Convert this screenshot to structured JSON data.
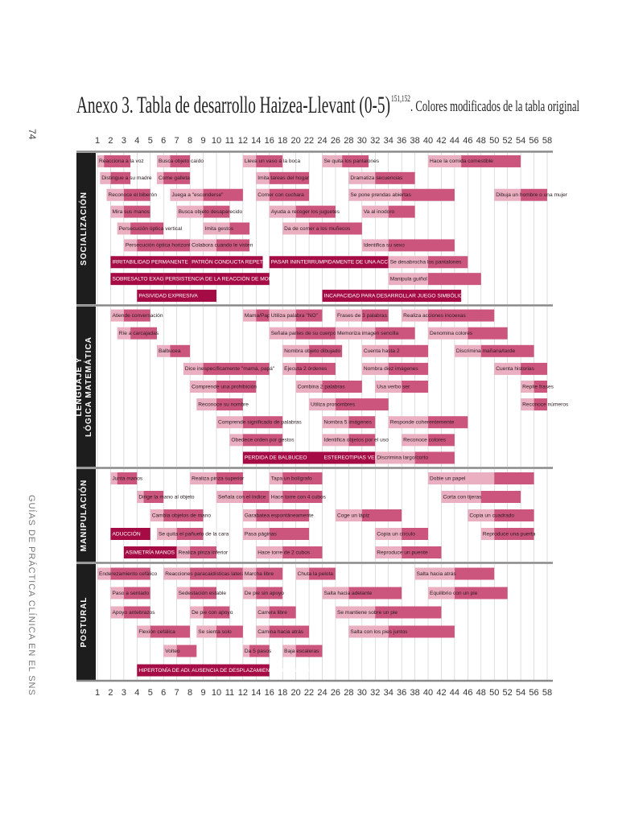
{
  "title": "Anexo 3. Tabla de desarrollo Haizea-Llevant (0-5)",
  "title_sup": "151,152",
  "title_rest": ". Colores modificados de la tabla original",
  "page_number": "74",
  "side_text": "GUÍAS DE PRÁCTICA CLÍNICA EN EL SNS",
  "xticks": [
    1,
    2,
    3,
    4,
    5,
    6,
    7,
    8,
    9,
    10,
    11,
    12,
    14,
    16,
    18,
    20,
    22,
    24,
    26,
    28,
    30,
    32,
    34,
    36,
    38,
    40,
    42,
    44,
    46,
    48,
    50,
    52,
    54,
    56,
    58
  ],
  "sections": [
    {
      "name": [
        "SOCIALIZACIÓN"
      ],
      "rows": [
        [
          {
            "label": "Reacciona a la voz",
            "range": [
              1,
              1.5,
              3.5
            ]
          },
          {
            "label": "Busca objeto caído",
            "range": [
              5.5,
              6.5,
              8
            ]
          },
          {
            "label": "Lleva un vaso a la boca",
            "range": [
              12,
              14,
              18
            ]
          },
          {
            "label": "Se quita los pantalones",
            "range": [
              24,
              27,
              31
            ]
          },
          {
            "label": "Hace la comida comestible",
            "range": [
              40,
              45,
              54
            ]
          }
        ],
        [
          {
            "label": "Distingue a su madre",
            "range": [
              1.2,
              2,
              3.5
            ]
          },
          {
            "label": "Come galleta",
            "range": [
              5.5,
              6,
              8
            ]
          },
          {
            "label": "Imita tareas del hogar",
            "range": [
              14,
              16,
              22
            ]
          },
          {
            "label": "Dramatiza secuencias",
            "range": [
              28,
              32,
              38
            ]
          }
        ],
        [
          {
            "label": "Reconoce el biberón",
            "range": [
              1.7,
              3,
              5
            ]
          },
          {
            "label": "Juega a \"esconderse\"",
            "range": [
              6.5,
              9,
              12
            ]
          },
          {
            "label": "Comer con cuchara",
            "range": [
              14,
              16,
              22
            ]
          },
          {
            "label": "Se pone prendas abiertas",
            "range": [
              28,
              36,
              44
            ]
          },
          {
            "label": "Dibuja un hombre o una mujer",
            "range": [
              50,
              54,
              58
            ]
          }
        ],
        [
          {
            "label": "Mira sus manos",
            "range": [
              2,
              3,
              5
            ]
          },
          {
            "label": "Busca objeto desaparecido",
            "range": [
              7,
              9,
              11
            ]
          },
          {
            "label": "Ayuda a recoger los juguetes",
            "range": [
              16,
              20,
              26
            ]
          },
          {
            "label": "Va al inodoro",
            "range": [
              30,
              34,
              38
            ]
          }
        ],
        [
          {
            "label": "Persecución óptica vertical",
            "range": [
              2.5,
              3.5,
              6
            ]
          },
          {
            "label": "Imita gestos",
            "range": [
              9,
              11,
              13
            ]
          },
          {
            "label": "Da de comer a los muñecos",
            "range": [
              18,
              22,
              30
            ]
          }
        ],
        [
          {
            "label": "Persecución óptica horizontal",
            "range": [
              3,
              4,
              8
            ]
          },
          {
            "label": "Colabora cuando le visten",
            "range": [
              8,
              10,
              13
            ]
          },
          {
            "label": "Identifica su sexo",
            "range": [
              30,
              34,
              44
            ]
          }
        ],
        [
          {
            "label": "IRRITABILIDAD PERMANENTE",
            "range": [
              2,
              8
            ]
          },
          {
            "label": "PATRÓN CONDUCTA REPETITIVO",
            "range": [
              8,
              15
            ]
          },
          {
            "label": "PASAR ININTERRUMPIDAMENTE DE UNA ACCIÓN A OTRA",
            "range": [
              16,
              34
            ]
          },
          {
            "label": "Se desabrocha los pantalones",
            "range": [
              34,
              40,
              46
            ]
          }
        ],
        [
          {
            "label": "SOBRESALTO EXAGERADO",
            "range": [
              2,
              6
            ]
          },
          {
            "label": "PERSISTENCIA DE LA REACCIÓN DE MORO",
            "range": [
              6,
              16
            ]
          },
          {
            "label": "Manipula guiñol",
            "range": [
              34,
              40,
              48
            ]
          }
        ],
        [
          {
            "label": "PASIVIDAD EXPRESIVA",
            "range": [
              4,
              10
            ]
          },
          {
            "label": "INCAPACIDAD PARA DESARROLLAR JUEGO SIMBÓLICO",
            "range": [
              24,
              45
            ]
          }
        ]
      ]
    },
    {
      "name": [
        "LENGUAJE Y",
        "LÓGICA MATEMÁTICA"
      ],
      "rows": [
        [
          {
            "label": "Atiende conversación",
            "range": [
              2,
              3,
              5
            ]
          },
          {
            "label": "Mama/Papá",
            "range": [
              12,
              14,
              16
            ]
          },
          {
            "label": "Utiliza palabra \"NO\"",
            "range": [
              16,
              20,
              24
            ]
          },
          {
            "label": "Frases de 3 palabras",
            "range": [
              26,
              30,
              34
            ]
          },
          {
            "label": "Realiza acciones incoexas",
            "range": [
              36,
              40,
              50
            ]
          }
        ],
        [
          {
            "label": "Ríe a carcajadas",
            "range": [
              2.5,
              3.5,
              5.5
            ]
          },
          {
            "label": "Señala partes de su cuerpo",
            "range": [
              16,
              20,
              26
            ]
          },
          {
            "label": "Memoriza imagen sencilla",
            "range": [
              26,
              32,
              38
            ]
          },
          {
            "label": "Denomina colores",
            "range": [
              40,
              46,
              52
            ]
          }
        ],
        [
          {
            "label": "Balbucea",
            "range": [
              5.5,
              6.5,
              8
            ]
          },
          {
            "label": "Nombra objeto dibujado",
            "range": [
              18,
              22,
              27
            ]
          },
          {
            "label": "Cuenta hasta 2",
            "range": [
              30,
              34,
              40
            ]
          },
          {
            "label": "Discrimina mañana/tarde",
            "range": [
              44,
              48,
              56
            ]
          }
        ],
        [
          {
            "label": "Dice inespecíficamente \"mamá, papá\"",
            "range": [
              7.5,
              9,
              16
            ]
          },
          {
            "label": "Ejecuta 2 órdenes",
            "range": [
              18,
              20,
              26
            ]
          },
          {
            "label": "Nombra diez imágenes",
            "range": [
              30,
              34,
              40
            ]
          },
          {
            "label": "Cuenta historias",
            "range": [
              50,
              54,
              58
            ]
          }
        ],
        [
          {
            "label": "Comprende una prohibición",
            "range": [
              8,
              10,
              14
            ]
          },
          {
            "label": "Combina 2 palabras",
            "range": [
              20,
              24,
              30
            ]
          },
          {
            "label": "Usa verbo ser",
            "range": [
              32,
              36,
              40
            ]
          },
          {
            "label": "Repite frases",
            "range": [
              54,
              56,
              58
            ]
          }
        ],
        [
          {
            "label": "Reconoce su nombre",
            "range": [
              8.5,
              10,
              12
            ]
          },
          {
            "label": "Utiliza pronombres",
            "range": [
              22,
              26,
              34
            ]
          },
          {
            "label": "Reconoce números",
            "range": [
              54,
              56,
              58
            ]
          }
        ],
        [
          {
            "label": "Comprende significado de palabras",
            "range": [
              10,
              12,
              18
            ]
          },
          {
            "label": "Nombra 5 imágenes",
            "range": [
              24,
              28,
              32
            ]
          },
          {
            "label": "Responde coherentemente",
            "range": [
              34,
              40,
              46
            ]
          }
        ],
        [
          {
            "label": "Obedece orden por gestos",
            "range": [
              11,
              12,
              18
            ]
          },
          {
            "label": "Identifica objetos por el uso",
            "range": [
              24,
              28,
              32
            ]
          },
          {
            "label": "Reconoce colores",
            "range": [
              36,
              40,
              44
            ]
          }
        ],
        [
          {
            "label": "PERDIDA DE BALBUCEO",
            "range": [
              12,
              24
            ]
          },
          {
            "label": "ESTEREOTIPIAS VERB.",
            "range": [
              24,
              32
            ]
          },
          {
            "label": "Discrimina largo/corto",
            "range": [
              32,
              38,
              44
            ]
          }
        ]
      ]
    },
    {
      "name": [
        "MANIPULACIÓN"
      ],
      "rows": [
        [
          {
            "label": "Junta manos",
            "range": [
              2,
              2.5,
              4
            ]
          },
          {
            "label": "Realiza pinza superior",
            "range": [
              8,
              10,
              12
            ]
          },
          {
            "label": "Tapa un bolígrafo",
            "range": [
              16,
              18,
              24
            ]
          },
          {
            "label": "Doble un papel",
            "range": [
              40,
              50,
              56
            ]
          }
        ],
        [
          {
            "label": "Dirige la mano al objeto",
            "range": [
              4,
              4.5,
              6
            ]
          },
          {
            "label": "Señala con el índice",
            "range": [
              10,
              12,
              16
            ]
          },
          {
            "label": "Hace torre con 4 cubos",
            "range": [
              16,
              18,
              24
            ]
          },
          {
            "label": "Corta con tijeras",
            "range": [
              42,
              48,
              54
            ]
          }
        ],
        [
          {
            "label": "Cambia objetos de mano",
            "range": [
              5,
              6,
              9
            ]
          },
          {
            "label": "Garabatea espontáneamente",
            "range": [
              12,
              14,
              22
            ]
          },
          {
            "label": "Coge un lápiz",
            "range": [
              26,
              30,
              36
            ]
          },
          {
            "label": "Copia un cuadrado",
            "range": [
              46,
              50,
              56
            ]
          }
        ],
        [
          {
            "label": "ADUCCIÓN",
            "range": [
              2,
              5
            ]
          },
          {
            "label": "Se quita el pañuelo de la cara",
            "range": [
              5.5,
              7,
              9
            ]
          },
          {
            "label": "Pasa páginas",
            "range": [
              12,
              16,
              22
            ]
          },
          {
            "label": "Copia un círculo",
            "range": [
              32,
              36,
              40
            ]
          },
          {
            "label": "Reproduce una puerta",
            "range": [
              48,
              50,
              56
            ]
          }
        ],
        [
          {
            "label": "ASIMETRÍA MANOS",
            "range": [
              3,
              7
            ]
          },
          {
            "label": "Realiza pinza inferior",
            "range": [
              7,
              8,
              10
            ]
          },
          {
            "label": "Hace torre de 2 cubos",
            "range": [
              14,
              18,
              24
            ]
          },
          {
            "label": "Reproduce un puente",
            "range": [
              32,
              36,
              42
            ]
          }
        ]
      ]
    },
    {
      "name": [
        "POSTURAL"
      ],
      "rows": [
        [
          {
            "label": "Enderezamiento cefálico",
            "range": [
              1,
              2,
              5
            ]
          },
          {
            "label": "Reacciones paracaidísticas laterales",
            "range": [
              6,
              8,
              12
            ]
          },
          {
            "label": "Marcha libre",
            "range": [
              12,
              14,
              18
            ]
          },
          {
            "label": "Chuta la pelota",
            "range": [
              20,
              22,
              26
            ]
          },
          {
            "label": "Salta hacia atrás",
            "range": [
              38,
              44,
              50
            ]
          }
        ],
        [
          {
            "label": "Paso a sentado",
            "range": [
              2,
              3,
              5
            ]
          },
          {
            "label": "Sedestación estable",
            "range": [
              7,
              8,
              10
            ]
          },
          {
            "label": "De pie sin apoyo",
            "range": [
              12,
              14,
              18
            ]
          },
          {
            "label": "Salta hacia adelante",
            "range": [
              24,
              28,
              36
            ]
          },
          {
            "label": "Equilibrio con un pie",
            "range": [
              40,
              44,
              52
            ]
          }
        ],
        [
          {
            "label": "Apoyo antebrazos",
            "range": [
              2,
              3,
              5
            ]
          },
          {
            "label": "De pie con apoyo",
            "range": [
              8,
              9,
              11
            ]
          },
          {
            "label": "Carrera libre",
            "range": [
              14,
              16,
              20
            ]
          },
          {
            "label": "Se mantiene sobre un pie",
            "range": [
              26,
              32,
              42
            ]
          }
        ],
        [
          {
            "label": "Flexión cefálica",
            "range": [
              4,
              5,
              8
            ]
          },
          {
            "label": "Se sienta solo",
            "range": [
              8.5,
              10,
              12
            ]
          },
          {
            "label": "Camina hacia atrás",
            "range": [
              14,
              16,
              22
            ]
          },
          {
            "label": "Salta con los pies juntos",
            "range": [
              28,
              34,
              44
            ]
          }
        ],
        [
          {
            "label": "Volteo",
            "range": [
              6,
              7,
              8.5
            ]
          },
          {
            "label": "Da 5 pasos",
            "range": [
              12,
              13,
              16
            ]
          },
          {
            "label": "Baja escaleras",
            "range": [
              18,
              20,
              24
            ]
          }
        ],
        [
          {
            "label": "HIPERTONÍA DE ADUC.",
            "range": [
              4,
              8
            ]
          },
          {
            "label": "AUSENCIA DE DESPLAZAMIENTO AUTÓNOMO",
            "range": [
              8,
              16
            ]
          }
        ]
      ]
    }
  ]
}
